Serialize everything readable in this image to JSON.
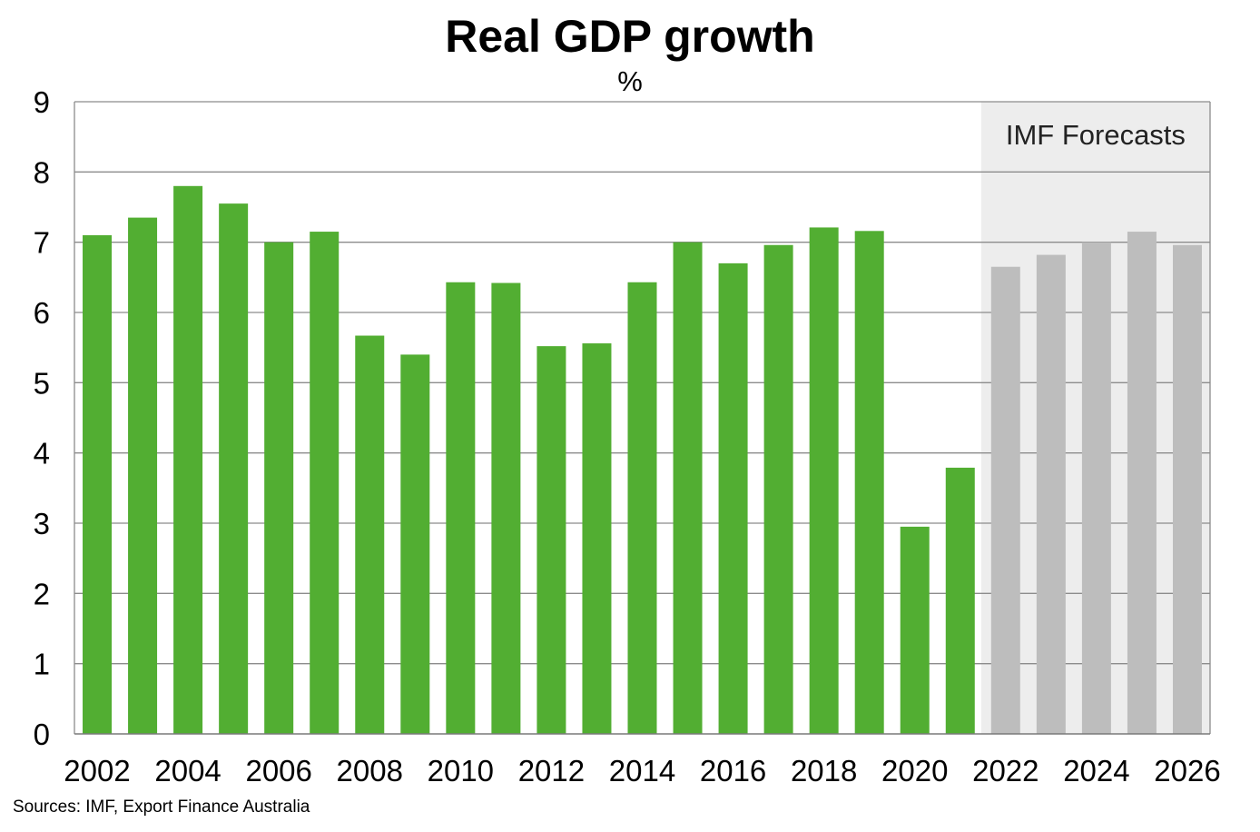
{
  "chart_data": {
    "type": "bar",
    "title": "Real GDP growth",
    "subtitle": "%",
    "categories": [
      "2002",
      "2003",
      "2004",
      "2005",
      "2006",
      "2007",
      "2008",
      "2009",
      "2010",
      "2011",
      "2012",
      "2013",
      "2014",
      "2015",
      "2016",
      "2017",
      "2018",
      "2019",
      "2020",
      "2021",
      "2022",
      "2023",
      "2024",
      "2025",
      "2026"
    ],
    "values": [
      7.1,
      7.35,
      7.8,
      7.55,
      7.0,
      7.15,
      5.67,
      5.4,
      6.43,
      6.42,
      5.52,
      5.56,
      6.43,
      7.0,
      6.7,
      6.96,
      7.21,
      7.16,
      2.95,
      3.79,
      6.65,
      6.82,
      7.0,
      7.15,
      6.96
    ],
    "x_tick_labels": [
      "2002",
      "2004",
      "2006",
      "2008",
      "2010",
      "2012",
      "2014",
      "2016",
      "2018",
      "2020",
      "2022",
      "2024",
      "2026"
    ],
    "y_ticks": [
      0,
      1,
      2,
      3,
      4,
      5,
      6,
      7,
      8,
      9
    ],
    "ylim": [
      0,
      9
    ],
    "grid": true,
    "forecast_from": "2022",
    "forecast_label": "IMF Forecasts",
    "colors": {
      "actual": "#52ae32",
      "forecast": "#bdbdbd",
      "forecast_region": "#ededed",
      "grid": "#8c8c8c"
    }
  },
  "source_note": "Sources: IMF, Export Finance Australia"
}
